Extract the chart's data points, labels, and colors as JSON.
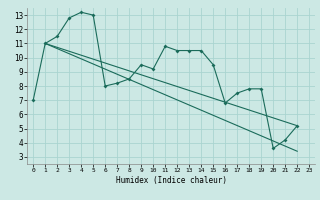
{
  "title": "",
  "xlabel": "Humidex (Indice chaleur)",
  "bg_color": "#cce8e4",
  "grid_color": "#aad4d0",
  "line_color": "#1a6b5a",
  "xlim": [
    -0.5,
    23.5
  ],
  "ylim": [
    2.5,
    13.5
  ],
  "xticks": [
    0,
    1,
    2,
    3,
    4,
    5,
    6,
    7,
    8,
    9,
    10,
    11,
    12,
    13,
    14,
    15,
    16,
    17,
    18,
    19,
    20,
    21,
    22,
    23
  ],
  "yticks": [
    3,
    4,
    5,
    6,
    7,
    8,
    9,
    10,
    11,
    12,
    13
  ],
  "line1_x": [
    0,
    1,
    2,
    3,
    4,
    5,
    6,
    7,
    8,
    9,
    10,
    11,
    12,
    13,
    14,
    15,
    16,
    17,
    18,
    19,
    20,
    21,
    22
  ],
  "line1_y": [
    7,
    11,
    11.5,
    12.8,
    13.2,
    13.0,
    8.0,
    8.2,
    8.5,
    9.5,
    9.2,
    10.8,
    10.5,
    10.5,
    10.5,
    9.5,
    6.8,
    7.5,
    7.8,
    7.8,
    3.6,
    4.2,
    5.2
  ],
  "line2_x": [
    1,
    22
  ],
  "line2_y": [
    11,
    5.2
  ],
  "line3_x": [
    1,
    22
  ],
  "line3_y": [
    11,
    3.4
  ]
}
